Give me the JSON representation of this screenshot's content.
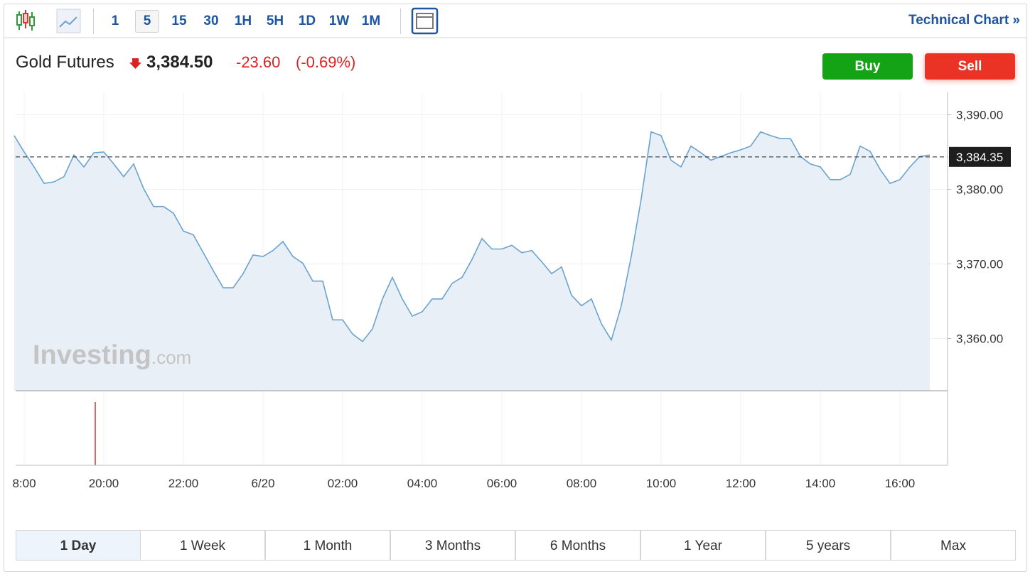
{
  "toolbar": {
    "intervals": [
      "1",
      "5",
      "15",
      "30",
      "1H",
      "5H",
      "1D",
      "1W",
      "1M"
    ],
    "link": "Technical Chart »"
  },
  "quote": {
    "name": "Gold Futures",
    "price": "3,384.50",
    "change": "-23.60",
    "change_pct": "(-0.69%)"
  },
  "buttons": [
    "Buy",
    "Sell"
  ],
  "watermark": [
    "Investing",
    ".com"
  ],
  "ranges": [
    "1 Day",
    "1 Week",
    "1 Month",
    "3 Months",
    "6 Months",
    "1 Year",
    "5 years",
    "Max"
  ],
  "chart_data": {
    "type": "line",
    "color": "#6aa3cf",
    "fill_color": "#e9eff7",
    "grid": true,
    "categories": [
      null,
      "8:00",
      null,
      null,
      null,
      null,
      null,
      null,
      null,
      "20:00",
      null,
      null,
      null,
      null,
      null,
      null,
      null,
      "22:00",
      null,
      null,
      null,
      null,
      null,
      null,
      null,
      "6/20",
      null,
      null,
      null,
      null,
      null,
      null,
      null,
      "02:00",
      null,
      null,
      null,
      null,
      null,
      null,
      null,
      "04:00",
      null,
      null,
      null,
      null,
      null,
      null,
      null,
      "06:00",
      null,
      null,
      null,
      null,
      null,
      null,
      null,
      "08:00",
      null,
      null,
      null,
      null,
      null,
      null,
      null,
      "10:00",
      null,
      null,
      null,
      null,
      null,
      null,
      null,
      "12:00",
      null,
      null,
      null,
      null,
      null,
      null,
      null,
      "14:00",
      null,
      null,
      null,
      null,
      null,
      null,
      null,
      "16:00",
      null,
      null,
      null
    ],
    "values": [
      3387.2,
      3385.0,
      3383.0,
      3380.8,
      3381.0,
      3381.7,
      3384.6,
      3383.0,
      3384.9,
      3385.0,
      3383.4,
      3381.7,
      3383.4,
      3380.1,
      3377.7,
      3377.7,
      3376.8,
      3374.4,
      3373.9,
      3371.5,
      3369.1,
      3366.8,
      3366.8,
      3368.7,
      3371.2,
      3371.0,
      3371.8,
      3373.0,
      3371.0,
      3370.1,
      3367.7,
      3367.7,
      3362.5,
      3362.5,
      3360.6,
      3359.6,
      3361.3,
      3365.3,
      3368.2,
      3365.3,
      3363.0,
      3363.6,
      3365.3,
      3365.3,
      3367.4,
      3368.2,
      3370.6,
      3373.4,
      3372.0,
      3372.0,
      3372.5,
      3371.5,
      3371.8,
      3370.3,
      3368.7,
      3369.6,
      3365.8,
      3364.4,
      3365.3,
      3362.0,
      3359.8,
      3364.4,
      3371.0,
      3378.7,
      3387.7,
      3387.2,
      3383.9,
      3383.0,
      3385.8,
      3384.9,
      3383.9,
      3384.4,
      3384.9,
      3385.3,
      3385.8,
      3387.7,
      3387.2,
      3386.8,
      3386.8,
      3384.4,
      3383.4,
      3383.0,
      3381.3,
      3381.3,
      3382.0,
      3385.8,
      3385.1,
      3382.7,
      3380.8,
      3381.3,
      3383.0,
      3384.4,
      3384.6
    ],
    "ylim": [
      3353,
      3393
    ],
    "yticks": [
      {
        "value": 3360,
        "label": "3,360.00"
      },
      {
        "value": 3370,
        "label": "3,370.00"
      },
      {
        "value": 3380,
        "label": "3,380.00"
      },
      {
        "value": 3390,
        "label": "3,390.00"
      }
    ],
    "last_value": {
      "value": 3384.35,
      "label": "3,384.35"
    }
  }
}
